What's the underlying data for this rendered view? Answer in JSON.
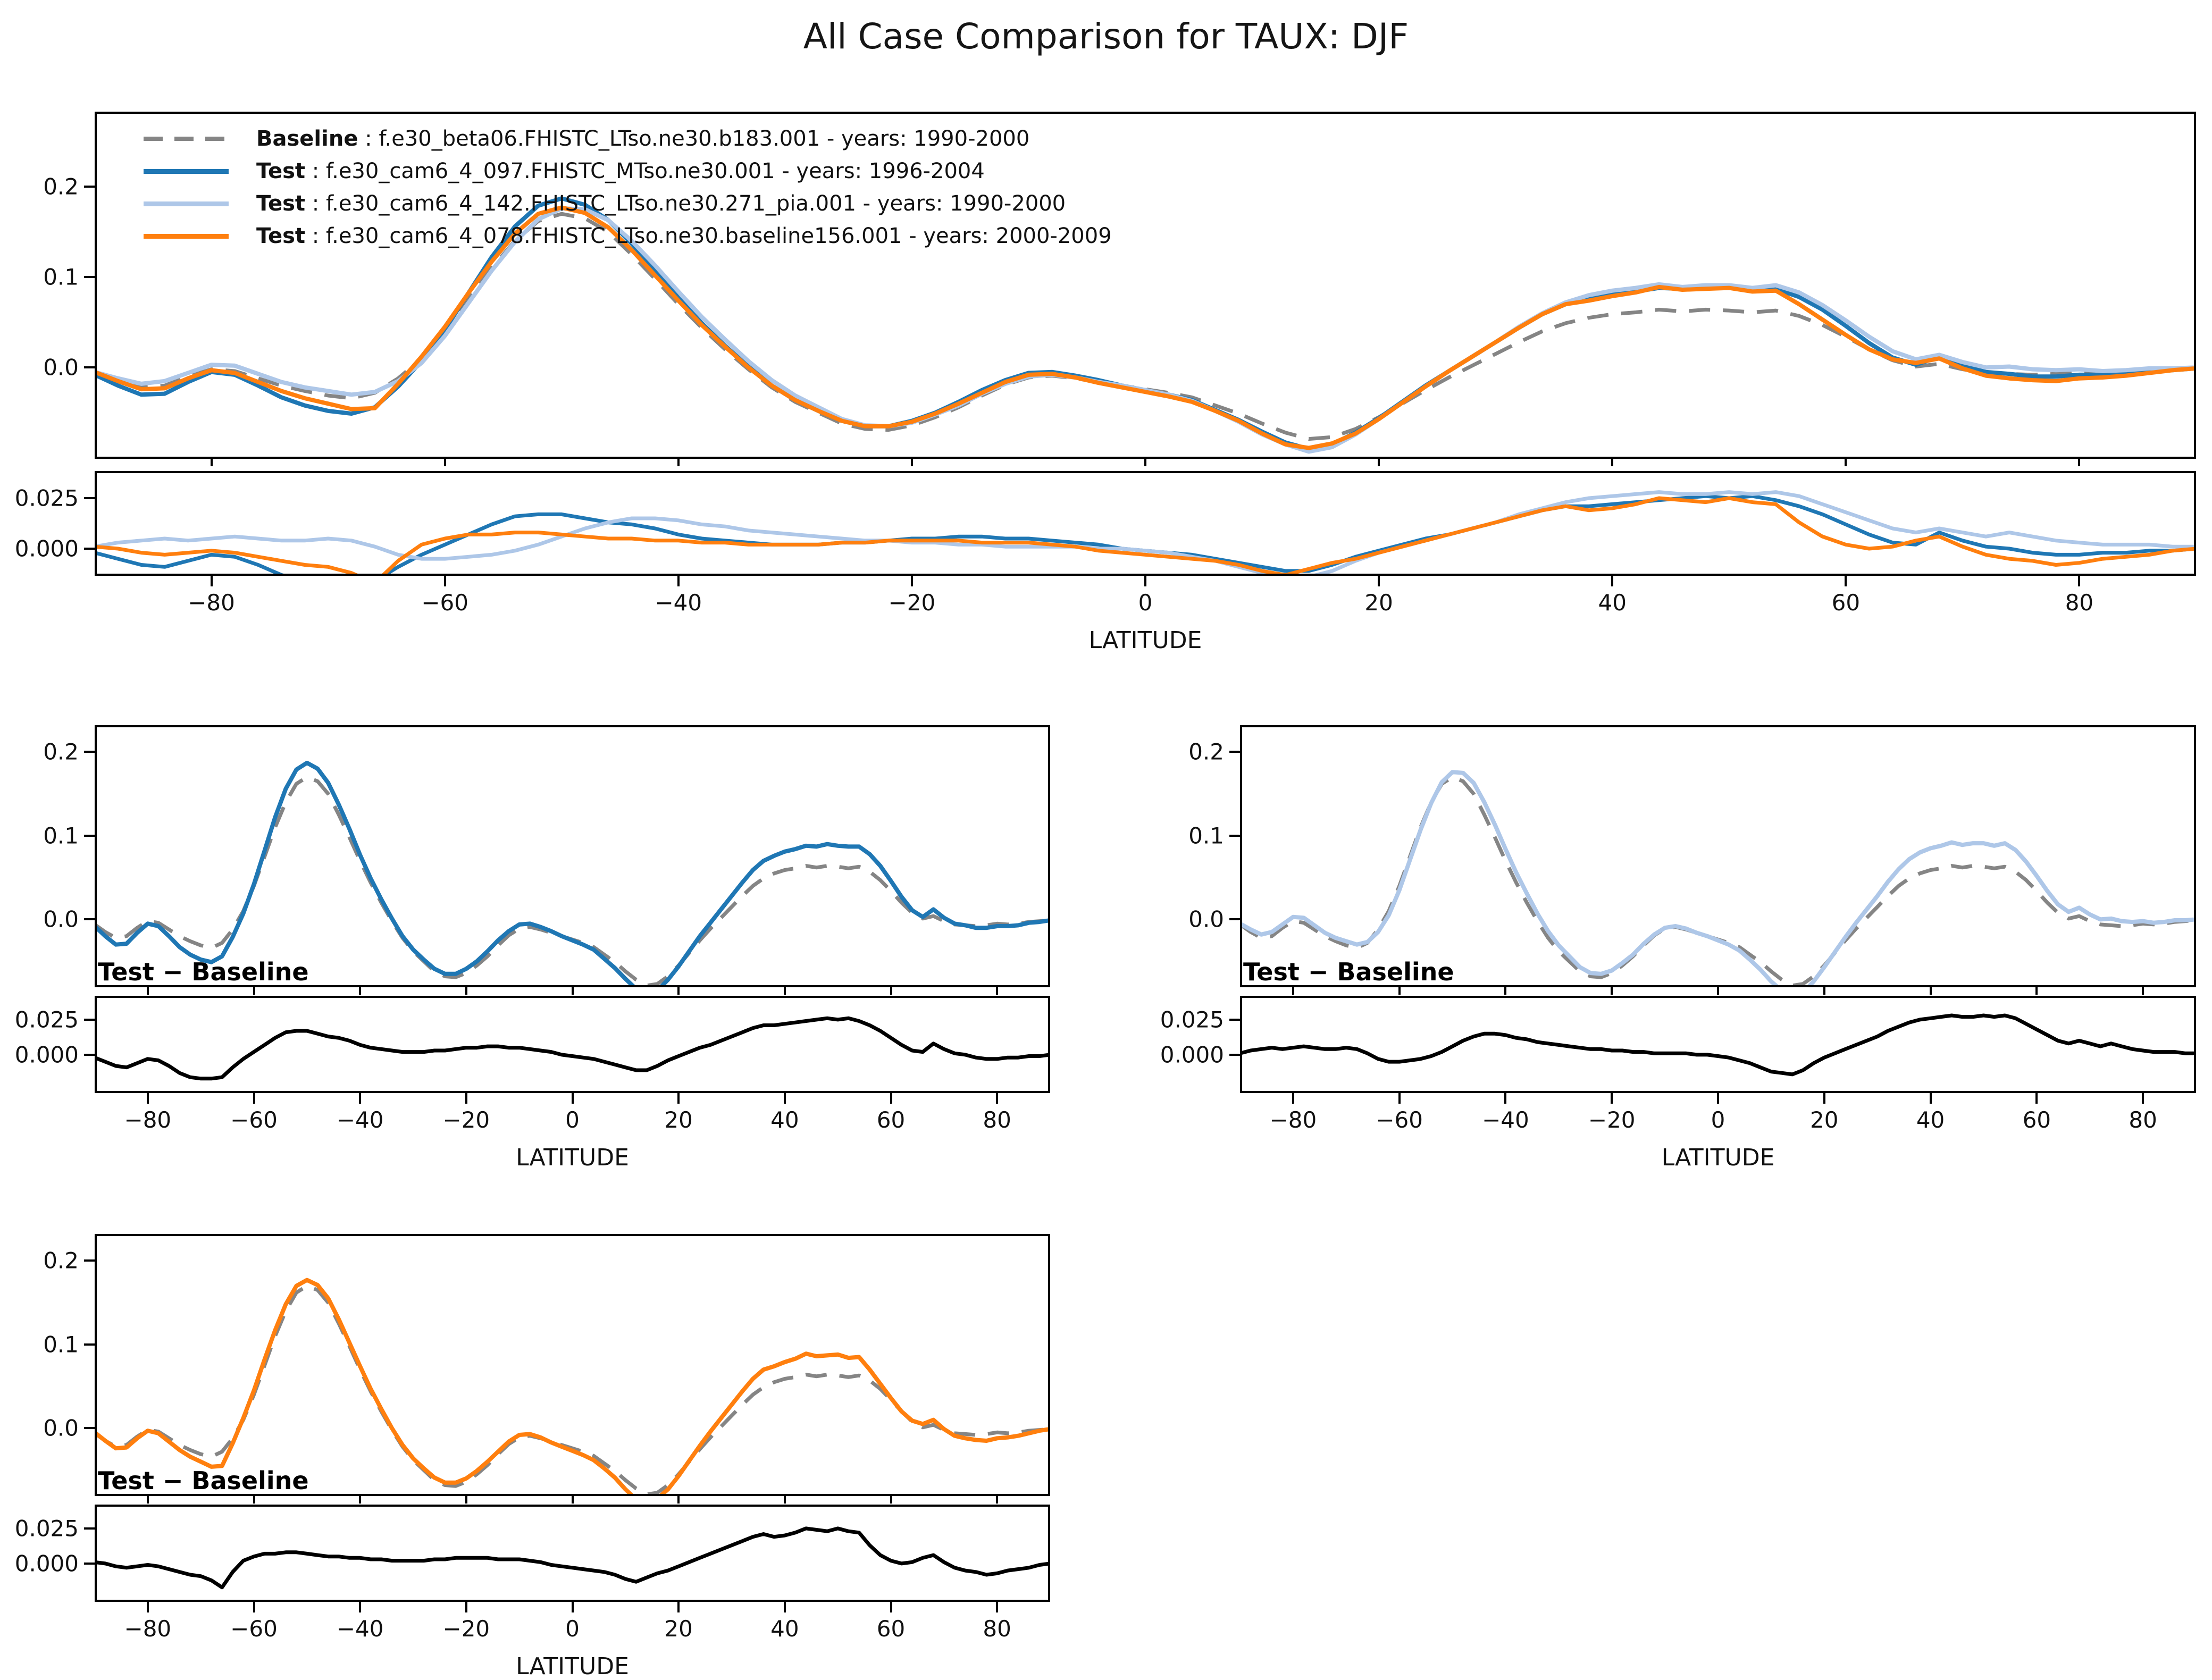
{
  "title": "All Case Comparison for TAUX: DJF",
  "axis": {
    "xlabel": "LATITUDE",
    "xticks": [
      -80,
      -60,
      -40,
      -20,
      0,
      20,
      40,
      60,
      80
    ]
  },
  "colors": {
    "baseline": "#858585",
    "test_blue": "#1f77b4",
    "test_light_blue": "#aec7e8",
    "test_orange": "#ff7f0e",
    "diff_line": "#000000",
    "axis": "#000000",
    "background": "#ffffff"
  },
  "legend_separator": " : ",
  "years_prefix": " - years: ",
  "chart_data": {
    "type": "line",
    "title": "All Case Comparison for TAUX: DJF",
    "xlabel": "LATITUDE",
    "grid": false,
    "legend_position": "upper-left-inside",
    "diff_panel_label": "Test − Baseline",
    "x_ticks": [
      -80,
      -60,
      -40,
      -20,
      0,
      20,
      40,
      60,
      80
    ],
    "main_y_ticks": [
      0.2,
      0.1,
      0.0
    ],
    "diff_y_ticks": [
      0.025,
      0.0
    ],
    "main_ylim_top": [
      -0.101,
      0.283
    ],
    "main_ylim_small": [
      -0.081,
      0.232
    ],
    "diff_ylim_top": [
      -0.0134,
      0.0384
    ],
    "diff_ylim_small": [
      -0.0273,
      0.042
    ],
    "x": [
      -90,
      -88,
      -86,
      -84,
      -82,
      -80,
      -78,
      -76,
      -74,
      -72,
      -70,
      -68,
      -66,
      -64,
      -62,
      -60,
      -58,
      -56,
      -54,
      -52,
      -50,
      -48,
      -46,
      -44,
      -42,
      -40,
      -38,
      -36,
      -34,
      -32,
      -30,
      -28,
      -26,
      -24,
      -22,
      -20,
      -18,
      -16,
      -14,
      -12,
      -10,
      -8,
      -6,
      -4,
      -2,
      0,
      2,
      4,
      6,
      8,
      10,
      12,
      14,
      16,
      18,
      20,
      22,
      24,
      26,
      28,
      30,
      32,
      34,
      36,
      38,
      40,
      42,
      44,
      46,
      48,
      50,
      52,
      54,
      56,
      58,
      60,
      62,
      64,
      66,
      68,
      70,
      72,
      74,
      76,
      78,
      80,
      82,
      84,
      86,
      88,
      90
    ],
    "note": "Each Test curve in the upper panels equals baseline.values + diff_from_baseline; diff panels plot diff_from_baseline directly.",
    "baseline": {
      "name": "Baseline",
      "case": "f.e30_beta06.FHISTC_LTso.ne30.b183.001",
      "years": "1990-2000",
      "color": "#858585",
      "style": "dashed",
      "values": [
        -0.006,
        -0.015,
        -0.022,
        -0.02,
        -0.01,
        -0.002,
        -0.004,
        -0.012,
        -0.02,
        -0.026,
        -0.031,
        -0.034,
        -0.028,
        -0.012,
        0.01,
        0.04,
        0.075,
        0.11,
        0.14,
        0.162,
        0.17,
        0.165,
        0.15,
        0.125,
        0.098,
        0.07,
        0.044,
        0.02,
        -0.002,
        -0.022,
        -0.038,
        -0.05,
        -0.062,
        -0.068,
        -0.069,
        -0.064,
        -0.055,
        -0.044,
        -0.031,
        -0.019,
        -0.011,
        -0.009,
        -0.012,
        -0.016,
        -0.02,
        -0.024,
        -0.028,
        -0.033,
        -0.042,
        -0.051,
        -0.062,
        -0.072,
        -0.079,
        -0.077,
        -0.068,
        -0.055,
        -0.04,
        -0.025,
        -0.011,
        0.002,
        0.015,
        0.028,
        0.04,
        0.049,
        0.055,
        0.059,
        0.061,
        0.064,
        0.062,
        0.064,
        0.063,
        0.061,
        0.063,
        0.057,
        0.047,
        0.034,
        0.02,
        0.008,
        0.001,
        0.004,
        -0.002,
        -0.006,
        -0.007,
        -0.008,
        -0.007,
        -0.005,
        -0.006,
        -0.005,
        -0.003,
        -0.002,
        -0.001
      ]
    },
    "tests": [
      {
        "name": "Test",
        "case": "f.e30_cam6_4_097.FHISTC_MTso.ne30.001",
        "years": "1996-2004",
        "color": "#1f77b4",
        "style": "solid",
        "diff_from_baseline": [
          -0.002,
          -0.005,
          -0.008,
          -0.009,
          -0.006,
          -0.003,
          -0.004,
          -0.008,
          -0.013,
          -0.016,
          -0.017,
          -0.017,
          -0.016,
          -0.009,
          -0.003,
          0.002,
          0.007,
          0.012,
          0.016,
          0.017,
          0.017,
          0.015,
          0.013,
          0.012,
          0.01,
          0.007,
          0.005,
          0.004,
          0.003,
          0.002,
          0.002,
          0.002,
          0.003,
          0.003,
          0.004,
          0.005,
          0.005,
          0.006,
          0.006,
          0.005,
          0.005,
          0.004,
          0.003,
          0.002,
          0.0,
          -0.001,
          -0.002,
          -0.003,
          -0.005,
          -0.007,
          -0.009,
          -0.011,
          -0.011,
          -0.008,
          -0.004,
          -0.001,
          0.002,
          0.005,
          0.007,
          0.01,
          0.013,
          0.016,
          0.019,
          0.021,
          0.021,
          0.022,
          0.023,
          0.024,
          0.025,
          0.026,
          0.025,
          0.026,
          0.024,
          0.021,
          0.017,
          0.012,
          0.007,
          0.003,
          0.002,
          0.008,
          0.004,
          0.001,
          0.0,
          -0.002,
          -0.003,
          -0.003,
          -0.002,
          -0.002,
          -0.001,
          -0.001,
          0.0
        ]
      },
      {
        "name": "Test",
        "case": "f.e30_cam6_4_142.FHISTC_LTso.ne30.271_pia.001",
        "years": "1990-2000",
        "color": "#aec7e8",
        "style": "solid",
        "diff_from_baseline": [
          0.001,
          0.003,
          0.004,
          0.005,
          0.004,
          0.005,
          0.006,
          0.005,
          0.004,
          0.004,
          0.005,
          0.004,
          0.001,
          -0.003,
          -0.005,
          -0.005,
          -0.004,
          -0.003,
          -0.001,
          0.002,
          0.006,
          0.01,
          0.013,
          0.015,
          0.015,
          0.014,
          0.012,
          0.011,
          0.009,
          0.008,
          0.007,
          0.006,
          0.005,
          0.004,
          0.004,
          0.003,
          0.003,
          0.002,
          0.002,
          0.001,
          0.001,
          0.001,
          0.001,
          0.0,
          0.0,
          -0.001,
          -0.002,
          -0.004,
          -0.006,
          -0.009,
          -0.012,
          -0.013,
          -0.014,
          -0.011,
          -0.006,
          -0.002,
          0.001,
          0.004,
          0.007,
          0.01,
          0.013,
          0.017,
          0.02,
          0.023,
          0.025,
          0.026,
          0.027,
          0.028,
          0.027,
          0.027,
          0.028,
          0.027,
          0.028,
          0.026,
          0.022,
          0.018,
          0.014,
          0.01,
          0.008,
          0.01,
          0.008,
          0.006,
          0.008,
          0.006,
          0.004,
          0.003,
          0.002,
          0.002,
          0.002,
          0.001,
          0.001
        ]
      },
      {
        "name": "Test",
        "case": "f.e30_cam6_4_078.FHISTC_LTso.ne30.baseline156.001",
        "years": "2000-2009",
        "color": "#ff7f0e",
        "style": "solid",
        "diff_from_baseline": [
          0.001,
          0.0,
          -0.002,
          -0.003,
          -0.002,
          -0.001,
          -0.002,
          -0.004,
          -0.006,
          -0.008,
          -0.009,
          -0.012,
          -0.017,
          -0.006,
          0.002,
          0.005,
          0.007,
          0.007,
          0.008,
          0.008,
          0.007,
          0.006,
          0.005,
          0.005,
          0.004,
          0.004,
          0.003,
          0.003,
          0.002,
          0.002,
          0.002,
          0.002,
          0.003,
          0.003,
          0.004,
          0.004,
          0.004,
          0.004,
          0.003,
          0.003,
          0.003,
          0.002,
          0.001,
          -0.001,
          -0.002,
          -0.003,
          -0.004,
          -0.005,
          -0.006,
          -0.008,
          -0.011,
          -0.013,
          -0.01,
          -0.007,
          -0.005,
          -0.002,
          0.001,
          0.004,
          0.007,
          0.01,
          0.013,
          0.016,
          0.019,
          0.021,
          0.019,
          0.02,
          0.022,
          0.025,
          0.024,
          0.023,
          0.025,
          0.023,
          0.022,
          0.013,
          0.006,
          0.002,
          0.0,
          0.001,
          0.004,
          0.006,
          0.001,
          -0.003,
          -0.005,
          -0.006,
          -0.008,
          -0.007,
          -0.005,
          -0.004,
          -0.003,
          -0.001,
          0.0
        ]
      }
    ]
  }
}
